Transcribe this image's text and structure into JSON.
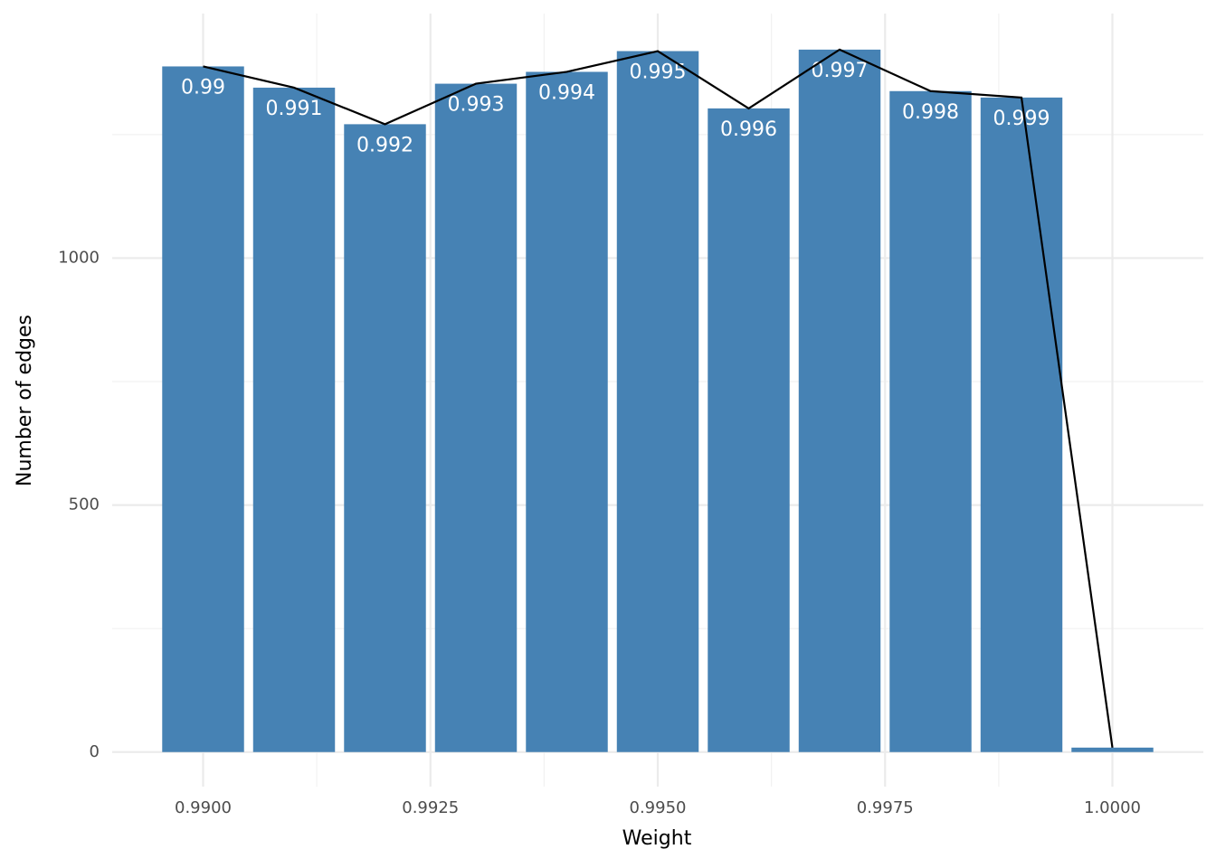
{
  "chart_data": {
    "type": "bar",
    "x_label": "Weight",
    "y_label": "Number of edges",
    "x": [
      0.99,
      0.991,
      0.992,
      0.993,
      0.994,
      0.995,
      0.996,
      0.997,
      0.998,
      0.999,
      1.0
    ],
    "values": [
      1388,
      1345,
      1271,
      1353,
      1377,
      1419,
      1303,
      1422,
      1338,
      1325,
      9
    ],
    "bar_labels": [
      "0.99",
      "0.991",
      "0.992",
      "0.993",
      "0.994",
      "0.995",
      "0.996",
      "0.997",
      "0.998",
      "0.999",
      null
    ],
    "bar_width": 0.0009,
    "color": "#4682b4",
    "line": true,
    "line_color": "#000000",
    "xlim": [
      0.989,
      1.001
    ],
    "xticks": [
      {
        "value": 0.99,
        "label": "0.9900"
      },
      {
        "value": 0.9925,
        "label": "0.9925"
      },
      {
        "value": 0.995,
        "label": "0.9950"
      },
      {
        "value": 0.9975,
        "label": "0.9975"
      },
      {
        "value": 1.0,
        "label": "1.0000"
      }
    ],
    "xminor": [
      0.99125,
      0.99375,
      0.99625,
      0.99875
    ],
    "ylim": [
      -70,
      1495
    ],
    "yticks": [
      0,
      500,
      1000
    ],
    "yminor": [
      250,
      750,
      1250
    ],
    "grid": true
  }
}
